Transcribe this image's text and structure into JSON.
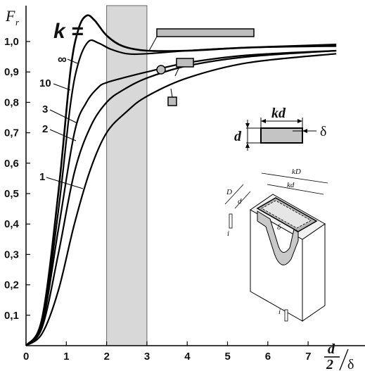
{
  "chart_data": {
    "type": "line",
    "title": "",
    "ylabel": "F",
    "ylabel_sub": "r",
    "xlabel_num": "d",
    "xlabel_den": "2",
    "xlabel_tail": "δ",
    "xlim": [
      0,
      7.7
    ],
    "ylim": [
      0,
      1.07
    ],
    "xticks": [
      0,
      1,
      2,
      3,
      4,
      5,
      6,
      7
    ],
    "xtick_labels": [
      "0",
      "1",
      "2",
      "3",
      "4",
      "5",
      "6",
      "7"
    ],
    "yticks": [
      0.1,
      0.2,
      0.3,
      0.4,
      0.5,
      0.6,
      0.7,
      0.8,
      0.9,
      1.0
    ],
    "ytick_labels": [
      "0,1",
      "0,2",
      "0,3",
      "0,4",
      "0,5",
      "0,6",
      "0,7",
      "0,8",
      "0,9",
      "1,0"
    ],
    "grid": false,
    "shaded_band": {
      "x": [
        2,
        3
      ]
    },
    "legend_title": "k =",
    "series": [
      {
        "name": "∞",
        "x": [
          0,
          0.4,
          0.8,
          1.1,
          1.3,
          1.5,
          1.7,
          2.0,
          2.4,
          3.0,
          4.0,
          5.5,
          7.7
        ],
        "y": [
          0,
          0.09,
          0.5,
          0.9,
          1.04,
          1.085,
          1.07,
          1.02,
          0.985,
          0.97,
          0.97,
          0.98,
          0.99
        ]
      },
      {
        "name": "10",
        "x": [
          0,
          0.4,
          0.8,
          1.1,
          1.3,
          1.55,
          1.8,
          2.1,
          2.5,
          3.0,
          4.0,
          5.5,
          7.7
        ],
        "y": [
          0,
          0.08,
          0.44,
          0.79,
          0.93,
          1.0,
          0.995,
          0.975,
          0.96,
          0.96,
          0.97,
          0.98,
          0.985
        ]
      },
      {
        "name": "3",
        "x": [
          0,
          0.4,
          0.8,
          1.2,
          1.5,
          1.8,
          2.0,
          2.4,
          3.0,
          4.0,
          5.5,
          7.7
        ],
        "y": [
          0,
          0.07,
          0.38,
          0.7,
          0.8,
          0.85,
          0.865,
          0.88,
          0.9,
          0.93,
          0.955,
          0.97
        ]
      },
      {
        "name": "2",
        "x": [
          0,
          0.4,
          0.8,
          1.2,
          1.6,
          2.0,
          2.4,
          3.0,
          4.0,
          5.5,
          7.7
        ],
        "y": [
          0,
          0.06,
          0.3,
          0.57,
          0.72,
          0.8,
          0.84,
          0.88,
          0.92,
          0.95,
          0.97
        ]
      },
      {
        "name": "1",
        "x": [
          0,
          0.4,
          0.8,
          1.2,
          1.6,
          2.0,
          2.5,
          3.0,
          4.0,
          5.5,
          7.7
        ],
        "y": [
          0,
          0.04,
          0.18,
          0.4,
          0.58,
          0.7,
          0.77,
          0.82,
          0.88,
          0.93,
          0.96
        ]
      }
    ]
  },
  "inset": {
    "kd_label": "kd",
    "d_label": "d",
    "delta_label": "δ",
    "iso_kD_label": "kD",
    "iso_kd_label": "kd",
    "iso_D_label": "D",
    "iso_d_label": "d",
    "iso_delta_label": "δ",
    "iso_i_top_label": "i",
    "iso_i_bottom_label": "i"
  }
}
